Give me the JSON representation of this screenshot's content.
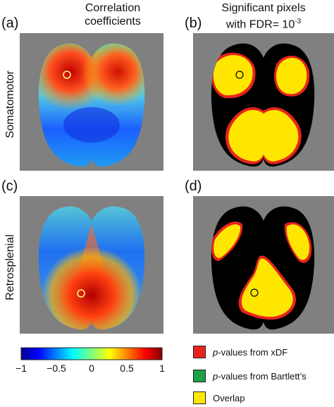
{
  "header_left": [
    "Correlation",
    "coefficients"
  ],
  "header_right": [
    "Significant pixels",
    "with FDR= 10",
    "-3"
  ],
  "panel_labels": {
    "a": "(a)",
    "b": "(b)",
    "c": "(c)",
    "d": "(d)"
  },
  "row_labels": {
    "top": "Somatomotor",
    "bottom": "Retrosplenial"
  },
  "colorbar": {
    "ticks": [
      "−1",
      "−0.5",
      "0",
      "0.5",
      "1"
    ],
    "tick_values": [
      -1,
      -0.5,
      0,
      0.5,
      1
    ]
  },
  "legend": [
    {
      "prefix": "p",
      "text": "-values from xDF",
      "color": "#e8231f"
    },
    {
      "prefix": "p",
      "text": "-values from Bartlett’s",
      "color": "#1aa14a"
    },
    {
      "prefix": "",
      "text": "Overlap",
      "color": "#ffe600"
    }
  ],
  "colors": {
    "background_gray": "#808080",
    "mask_black": "#000000",
    "overlap_yellow": "#ffe600",
    "xdf_red": "#e8231f"
  }
}
